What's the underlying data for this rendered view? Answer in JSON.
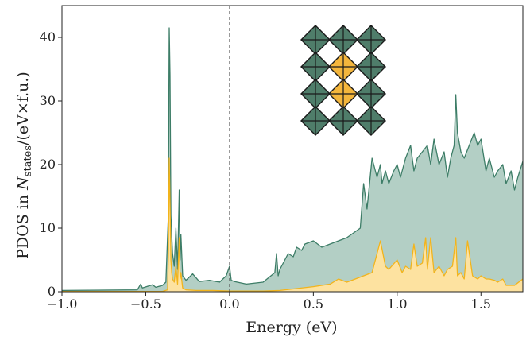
{
  "chart_data": {
    "type": "area",
    "xlabel": "Energy (eV)",
    "ylabel_parts": {
      "prefix": "PDOS in ",
      "symbol": "N",
      "subscript": "states",
      "suffix": "/(eV×f.u.)"
    },
    "xlim": [
      -1.0,
      1.75
    ],
    "ylim": [
      0,
      45
    ],
    "xticks": [
      -1.0,
      -0.5,
      0.0,
      0.5,
      1.0,
      1.5
    ],
    "xtick_labels": [
      "−1.0",
      "−0.5",
      "0.0",
      "0.5",
      "1.0",
      "1.5"
    ],
    "yticks": [
      0,
      10,
      20,
      30,
      40
    ],
    "ytick_labels": [
      "0",
      "10",
      "20",
      "30",
      "40"
    ],
    "fermi_level": 0.0,
    "grid": false,
    "legend": "none",
    "series": [
      {
        "role": "total",
        "color": "#3d7d67",
        "fill": "#b3cfc5",
        "x": [
          -1.0,
          -0.55,
          -0.53,
          -0.52,
          -0.46,
          -0.44,
          -0.4,
          -0.38,
          -0.365,
          -0.36,
          -0.355,
          -0.35,
          -0.345,
          -0.34,
          -0.33,
          -0.32,
          -0.31,
          -0.3,
          -0.295,
          -0.29,
          -0.28,
          -0.26,
          -0.22,
          -0.18,
          -0.12,
          -0.06,
          -0.02,
          0.0,
          0.01,
          0.03,
          0.1,
          0.2,
          0.27,
          0.28,
          0.29,
          0.3,
          0.32,
          0.35,
          0.38,
          0.4,
          0.43,
          0.45,
          0.5,
          0.55,
          0.6,
          0.7,
          0.78,
          0.8,
          0.82,
          0.85,
          0.88,
          0.9,
          0.91,
          0.93,
          0.95,
          0.98,
          1.0,
          1.02,
          1.05,
          1.08,
          1.1,
          1.12,
          1.15,
          1.18,
          1.2,
          1.22,
          1.25,
          1.28,
          1.3,
          1.32,
          1.34,
          1.35,
          1.36,
          1.38,
          1.4,
          1.43,
          1.46,
          1.48,
          1.5,
          1.53,
          1.55,
          1.58,
          1.6,
          1.63,
          1.65,
          1.68,
          1.7,
          1.72,
          1.75
        ],
        "y": [
          0.2,
          0.3,
          1.2,
          0.6,
          1.1,
          0.7,
          1.0,
          1.5,
          12.0,
          41.5,
          34.0,
          12.0,
          9.0,
          6.0,
          4.0,
          10.0,
          3.5,
          16.0,
          5.0,
          9.0,
          2.5,
          1.8,
          2.8,
          1.6,
          1.8,
          1.5,
          2.5,
          4.0,
          1.8,
          1.6,
          1.2,
          1.5,
          3.0,
          6.0,
          2.5,
          3.5,
          4.5,
          6.0,
          5.5,
          7.0,
          6.5,
          7.5,
          8.0,
          7.0,
          7.5,
          8.5,
          10.0,
          17.0,
          13.0,
          21.0,
          18.0,
          20.0,
          17.0,
          19.0,
          17.0,
          19.0,
          20.0,
          18.0,
          21.0,
          23.0,
          19.0,
          21.0,
          22.0,
          23.0,
          20.0,
          24.0,
          20.0,
          22.0,
          18.0,
          21.0,
          23.0,
          31.0,
          25.0,
          22.0,
          21.0,
          23.0,
          25.0,
          23.0,
          24.0,
          19.0,
          21.0,
          18.0,
          19.0,
          20.0,
          17.0,
          19.0,
          16.0,
          18.0,
          20.5
        ]
      },
      {
        "role": "projected",
        "color": "#f2b41c",
        "fill": "#fde2a0",
        "x": [
          -1.0,
          -0.4,
          -0.37,
          -0.365,
          -0.36,
          -0.355,
          -0.35,
          -0.345,
          -0.34,
          -0.33,
          -0.32,
          -0.31,
          -0.3,
          -0.295,
          -0.29,
          -0.28,
          -0.26,
          -0.2,
          -0.1,
          0.0,
          0.1,
          0.2,
          0.3,
          0.4,
          0.5,
          0.6,
          0.65,
          0.7,
          0.75,
          0.8,
          0.85,
          0.9,
          0.93,
          0.95,
          1.0,
          1.03,
          1.05,
          1.08,
          1.1,
          1.12,
          1.15,
          1.17,
          1.18,
          1.2,
          1.22,
          1.25,
          1.28,
          1.3,
          1.33,
          1.35,
          1.36,
          1.38,
          1.4,
          1.42,
          1.45,
          1.48,
          1.5,
          1.53,
          1.55,
          1.58,
          1.6,
          1.63,
          1.65,
          1.7,
          1.75
        ],
        "y": [
          0.05,
          0.05,
          0.3,
          6.0,
          21.0,
          14.0,
          5.0,
          3.0,
          2.0,
          1.5,
          4.0,
          1.2,
          8.5,
          2.0,
          3.0,
          0.6,
          0.3,
          0.2,
          0.2,
          0.1,
          0.1,
          0.1,
          0.2,
          0.5,
          0.8,
          1.2,
          2.0,
          1.5,
          2.0,
          2.5,
          3.0,
          8.0,
          4.0,
          3.5,
          5.0,
          3.0,
          4.0,
          3.5,
          7.5,
          4.0,
          4.5,
          8.5,
          3.5,
          8.5,
          3.0,
          4.0,
          2.5,
          3.5,
          4.0,
          8.5,
          2.5,
          3.0,
          2.0,
          8.0,
          2.5,
          2.0,
          2.5,
          2.0,
          2.0,
          1.8,
          1.5,
          2.0,
          1.0,
          1.0,
          2.0
        ]
      }
    ],
    "inset": {
      "description_key": "octahedra-lattice",
      "rows": 4,
      "cols": 3,
      "highlighted": [
        [
          1,
          1
        ],
        [
          2,
          1
        ]
      ],
      "color": "#4f7d6a",
      "highlight_color": "#f4b63c"
    }
  }
}
